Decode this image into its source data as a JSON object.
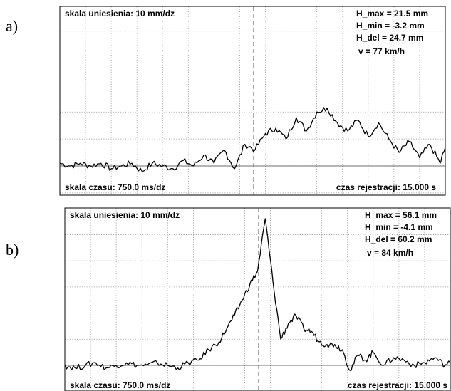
{
  "panels": [
    {
      "tag": "a)",
      "scale_height": "skala uniesienia:   10 mm/dz",
      "scale_time": "skala czasu:  750.0 ms/dz",
      "record_time": "czas rejestracji: 15.000 s",
      "h_max": "H_max =   21.5 mm",
      "h_min": "H_min =   -3.2 mm",
      "h_del": "H_del =   24.7 mm",
      "speed": "v = 77 km/h"
    },
    {
      "tag": "b)",
      "scale_height": "skala uniesienia:   10 mm/dz",
      "scale_time": "skala czasu:  750.0 ms/dz",
      "record_time": "czas rejestracji: 15.000 s",
      "h_max": "H_max =   56.1 mm",
      "h_min": "H_min =   -4.1 mm",
      "h_del": "H_del =   60.2 mm",
      "speed": "v = 84 km/h"
    }
  ],
  "chart_data": [
    {
      "type": "line",
      "title": "",
      "xlabel": "",
      "ylabel": "",
      "x_unit": "s",
      "y_unit": "mm",
      "xlim": [
        0,
        15
      ],
      "ylim": [
        -10,
        60
      ],
      "grid": true,
      "series": [
        {
          "x": [
            0,
            0.4,
            0.8,
            1.2,
            1.6,
            2.0,
            2.4,
            2.8,
            3.2,
            3.6,
            4.0,
            4.4,
            4.8,
            5.2,
            5.6,
            6.0,
            6.4,
            6.8,
            7.2,
            7.6,
            8.0,
            8.4,
            8.8,
            9.2,
            9.6,
            10.0,
            10.4,
            10.8,
            11.2,
            11.6,
            12.0,
            12.4,
            12.8,
            13.2,
            13.6,
            14.0,
            14.4,
            14.8,
            15.0
          ],
          "y": [
            1,
            0,
            1,
            0,
            1,
            -1,
            0,
            1,
            -2,
            1,
            0,
            -1,
            2,
            0,
            4,
            1,
            6,
            -1,
            8,
            6,
            12,
            14,
            10,
            18,
            13,
            20,
            21.5,
            16,
            13,
            17,
            11,
            16,
            10,
            5,
            9,
            3,
            8,
            1,
            7
          ]
        }
      ]
    },
    {
      "type": "line",
      "title": "",
      "xlabel": "",
      "ylabel": "",
      "x_unit": "s",
      "y_unit": "mm",
      "xlim": [
        0,
        15
      ],
      "ylim": [
        -10,
        60
      ],
      "grid": true,
      "series": [
        {
          "x": [
            0,
            0.4,
            0.8,
            1.2,
            1.6,
            2.0,
            2.4,
            2.8,
            3.2,
            3.6,
            4.0,
            4.4,
            4.8,
            5.2,
            5.6,
            6.0,
            6.3,
            6.6,
            6.9,
            7.2,
            7.5,
            7.8,
            8.1,
            8.4,
            8.7,
            9.0,
            9.3,
            9.6,
            9.9,
            10.2,
            10.5,
            10.8,
            11.1,
            11.4,
            11.7,
            12.0,
            12.4,
            12.8,
            13.2,
            13.6,
            14.0,
            14.4,
            14.8,
            15.0
          ],
          "y": [
            0,
            -1,
            0,
            1,
            -1,
            0,
            1,
            0,
            0,
            1,
            0,
            -1,
            1,
            2,
            6,
            9,
            14,
            19,
            25,
            31,
            36,
            56.1,
            32,
            10,
            16,
            19,
            14,
            13,
            9,
            8,
            8,
            6,
            -2,
            4,
            2,
            5,
            0,
            3,
            2,
            0,
            1,
            3,
            0,
            1
          ]
        }
      ]
    }
  ]
}
